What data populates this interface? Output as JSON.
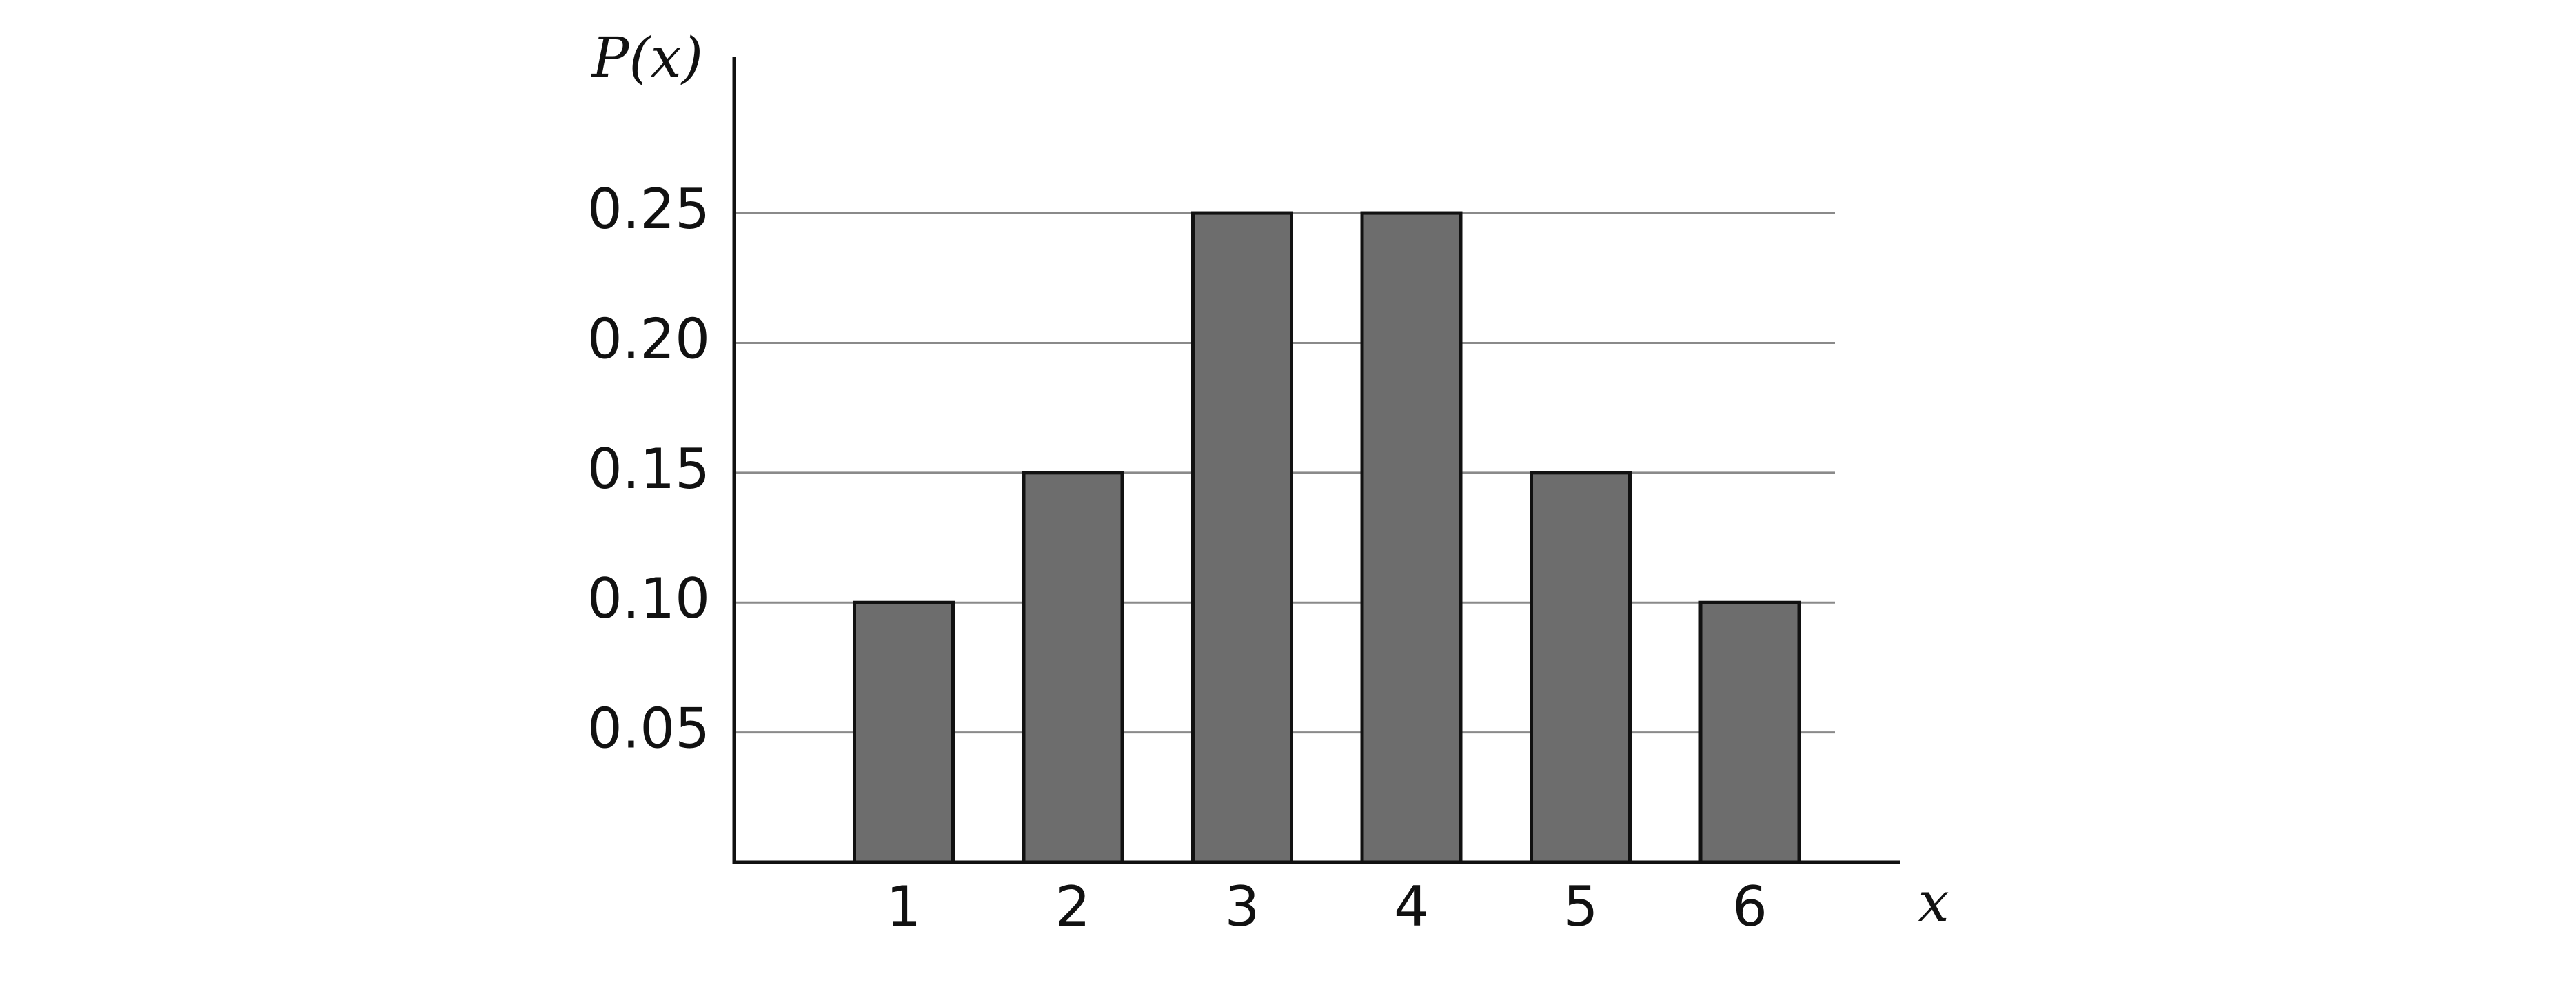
{
  "chart_data": {
    "type": "bar",
    "y_label": "P(x)",
    "x_label": "x",
    "categories": [
      "1",
      "2",
      "3",
      "4",
      "5",
      "6"
    ],
    "values": [
      0.1,
      0.15,
      0.25,
      0.25,
      0.15,
      0.1
    ],
    "color": "#6d6d6d",
    "ylim": [
      0,
      0.31
    ],
    "yticks": [
      {
        "value": 0.05,
        "label": "0.05"
      },
      {
        "value": 0.1,
        "label": "0.10"
      },
      0.15,
      {
        "value": 0.2,
        "label": "0.20"
      },
      0.25
    ],
    "grid": true
  }
}
